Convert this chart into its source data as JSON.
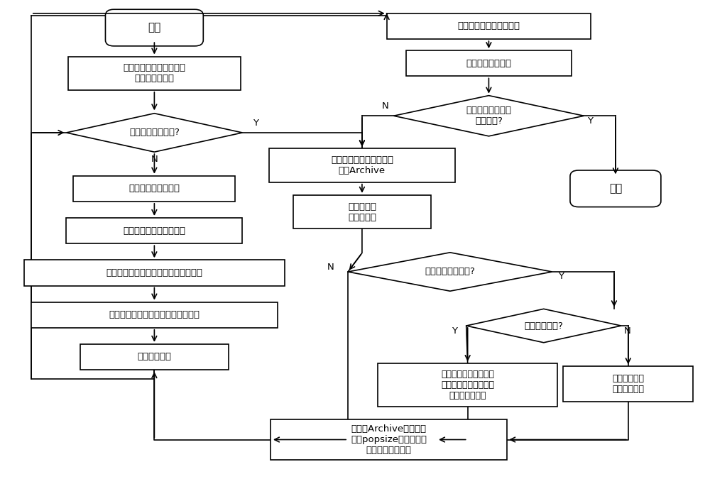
{
  "bg_color": "#ffffff",
  "line_color": "#000000",
  "nodes": {
    "start_text": "开始",
    "init_text": "初始化信息素矩阵和环境\n改变次数等参数",
    "detect_text": "检测环境是否改变?",
    "build_text": "构建每只蛂蚁的路径",
    "calc_text": "计算每只蛂蚁的路径长度",
    "local_update_text": "对每只蛂蚁的路径进行局部信息素更新",
    "global_update_text": "选出最好的路径进行全局信息素更新",
    "iter_inc_text": "迭代次数加一",
    "output_text": "输出蚁群中最短的路径值",
    "env_inc_text": "环境改变次数加一",
    "env_cond_text": "环境改变次数是否\n达到条件?",
    "end_text": "结束",
    "add_archive_text": "将每只蛂蚁的历史最优解\n加入Archive",
    "reinit_text": "重新初始化\n信息素矩阵",
    "dim_change_text": "是否发生维度改变?",
    "dim_increase_text": "维度是否增加?",
    "insert_node_text": "按最短路径插入原则将\n新增的结点插入到保存\n的历史最优解中",
    "delete_node_text": "直接删除不需\n要访问的结点",
    "pheromone_boost_text": "对属于Archive中路径最\n短的popsize个解的边执\n行信息素增量操作"
  }
}
